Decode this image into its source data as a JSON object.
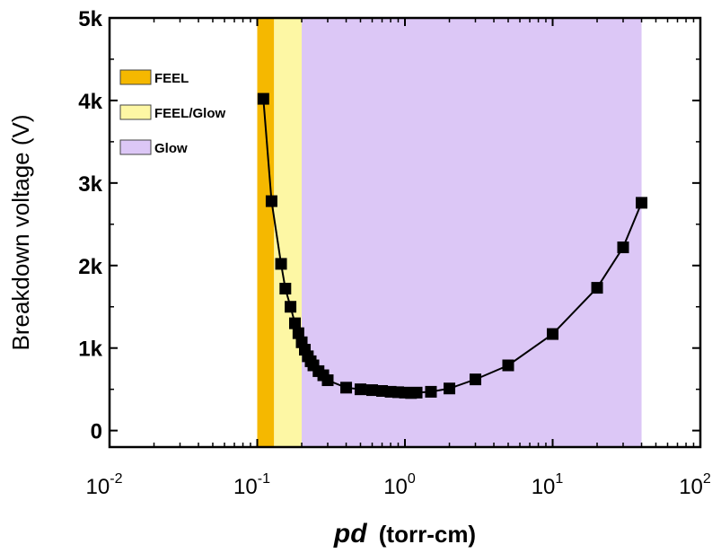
{
  "chart_data": {
    "type": "scatter",
    "xlabel_italic": "pd",
    "xlabel_unit": "(torr-cm)",
    "ylabel": "Breakdown voltage (V)",
    "x_scale": "log",
    "xlim": [
      0.01,
      100
    ],
    "ylim": [
      -200,
      5000
    ],
    "x_ticks": [
      {
        "value": 0.01,
        "base": "10",
        "exp": "-2"
      },
      {
        "value": 0.1,
        "base": "10",
        "exp": "-1"
      },
      {
        "value": 1,
        "base": "10",
        "exp": "0"
      },
      {
        "value": 10,
        "base": "10",
        "exp": "1"
      },
      {
        "value": 100,
        "base": "10",
        "exp": "2"
      }
    ],
    "y_ticks": [
      {
        "value": 0,
        "label": "0"
      },
      {
        "value": 1000,
        "label": "1k"
      },
      {
        "value": 2000,
        "label": "2k"
      },
      {
        "value": 3000,
        "label": "3k"
      },
      {
        "value": 4000,
        "label": "4k"
      },
      {
        "value": 5000,
        "label": "5k"
      }
    ],
    "regions": [
      {
        "name": "FEEL",
        "x_start": 0.1,
        "x_end": 0.13,
        "color": "#f5b800"
      },
      {
        "name": "FEEL/Glow",
        "x_start": 0.13,
        "x_end": 0.2,
        "color": "#fdf7a4"
      },
      {
        "name": "Glow",
        "x_start": 0.2,
        "x_end": 40,
        "color": "#dcc7f6"
      }
    ],
    "series": [
      {
        "marker": "square",
        "color": "#000000",
        "points": [
          [
            0.11,
            4020
          ],
          [
            0.125,
            2780
          ],
          [
            0.145,
            2020
          ],
          [
            0.155,
            1720
          ],
          [
            0.168,
            1500
          ],
          [
            0.18,
            1300
          ],
          [
            0.19,
            1180
          ],
          [
            0.2,
            1070
          ],
          [
            0.21,
            980
          ],
          [
            0.22,
            900
          ],
          [
            0.23,
            840
          ],
          [
            0.24,
            790
          ],
          [
            0.26,
            720
          ],
          [
            0.28,
            670
          ],
          [
            0.3,
            610
          ],
          [
            0.4,
            520
          ],
          [
            0.5,
            500
          ],
          [
            0.6,
            490
          ],
          [
            0.7,
            480
          ],
          [
            0.8,
            470
          ],
          [
            0.9,
            465
          ],
          [
            1.0,
            460
          ],
          [
            1.1,
            455
          ],
          [
            1.2,
            460
          ],
          [
            1.5,
            470
          ],
          [
            2.0,
            510
          ],
          [
            3.0,
            620
          ],
          [
            5.0,
            790
          ],
          [
            10.0,
            1170
          ],
          [
            20.0,
            1730
          ],
          [
            30.0,
            2220
          ],
          [
            40.0,
            2760
          ]
        ]
      }
    ]
  }
}
